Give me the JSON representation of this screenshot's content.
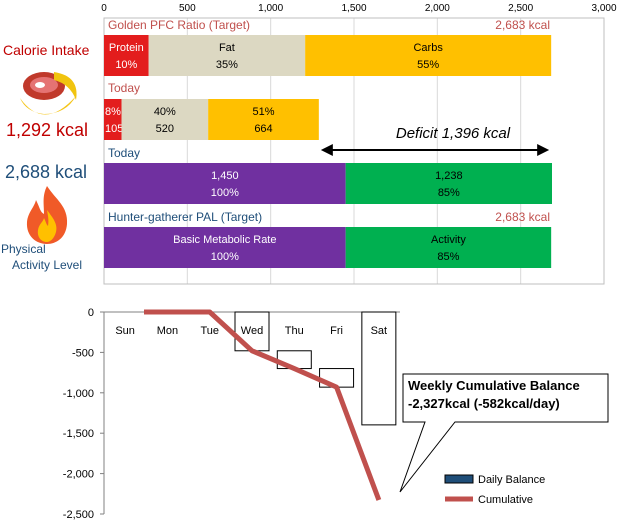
{
  "left_panel": {
    "calorie_intake_label": "Calorie Intake",
    "intake_value": "1,292 kcal",
    "burn_value": "2,688 kcal",
    "activity_label_line1": "Physical",
    "activity_label_line2": "Activity Level"
  },
  "colors": {
    "protein": "#e31d1d",
    "fat": "#dcd8c2",
    "carbs": "#ffc000",
    "bmr": "#7030a0",
    "activity": "#00b050",
    "section_red": "#c0504d",
    "section_blue": "#1f4e79",
    "cumulative": "#c0504d"
  },
  "chart_data": [
    {
      "type": "bar",
      "orientation": "horizontal",
      "stacked": true,
      "xlim": [
        0,
        3000
      ],
      "x_ticks": [
        "0",
        "500",
        "1,000",
        "1,500",
        "2,000",
        "2,500",
        "3,000"
      ],
      "grid": true,
      "annotation": "Deficit 1,396 kcal",
      "rows": [
        {
          "title": "Golden PFC Ratio (Target)",
          "total_label": "2,683 kcal",
          "segments": [
            {
              "name": "Protein",
              "value": 268,
              "lines": [
                "Protein",
                "10%"
              ],
              "color": "#e31d1d"
            },
            {
              "name": "Fat",
              "value": 939,
              "lines": [
                "Fat",
                "35%"
              ],
              "color": "#dcd8c2"
            },
            {
              "name": "Carbs",
              "value": 1476,
              "lines": [
                "Carbs",
                "55%"
              ],
              "color": "#ffc000"
            }
          ]
        },
        {
          "title": "Today",
          "total_label": "",
          "segments": [
            {
              "name": "Protein",
              "value": 105,
              "lines": [
                "8%",
                "105"
              ],
              "color": "#e31d1d"
            },
            {
              "name": "Fat",
              "value": 520,
              "lines": [
                "40%",
                "520"
              ],
              "color": "#dcd8c2"
            },
            {
              "name": "Carbs",
              "value": 664,
              "lines": [
                "51%",
                "664"
              ],
              "color": "#ffc000"
            }
          ]
        },
        {
          "title": "Today",
          "total_label": "",
          "segments": [
            {
              "name": "BMR",
              "value": 1450,
              "lines": [
                "1,450",
                "100%"
              ],
              "color": "#7030a0"
            },
            {
              "name": "Activity",
              "value": 1238,
              "lines": [
                "1,238",
                "85%"
              ],
              "color": "#00b050"
            }
          ]
        },
        {
          "title": "Hunter-gatherer  PAL (Target)",
          "total_label": "2,683 kcal",
          "segments": [
            {
              "name": "Basic Metabolic Rate",
              "value": 1450,
              "lines": [
                "Basic Metabolic Rate",
                "100%"
              ],
              "color": "#7030a0"
            },
            {
              "name": "Activity",
              "value": 1233,
              "lines": [
                "Activity",
                "85%"
              ],
              "color": "#00b050"
            }
          ]
        }
      ]
    },
    {
      "type": "bar+line",
      "categories": [
        "Sun",
        "Mon",
        "Tue",
        "Wed",
        "Thu",
        "Fri",
        "Sat"
      ],
      "ylim": [
        -2500,
        0
      ],
      "y_ticks": [
        "0",
        "-500",
        "-1,000",
        "-1,500",
        "-2,000",
        "-2,500"
      ],
      "series": [
        {
          "name": "Daily Balance",
          "type": "bar",
          "values": [
            0,
            0,
            0,
            -480,
            -220,
            -230,
            -1397
          ]
        },
        {
          "name": "Cumulative",
          "type": "line",
          "values": [
            0,
            0,
            0,
            -480,
            -700,
            -930,
            -2327
          ]
        }
      ],
      "callout": [
        "Weekly Cumulative Balance",
        "-2,327kcal (-582kcal/day)"
      ]
    }
  ]
}
